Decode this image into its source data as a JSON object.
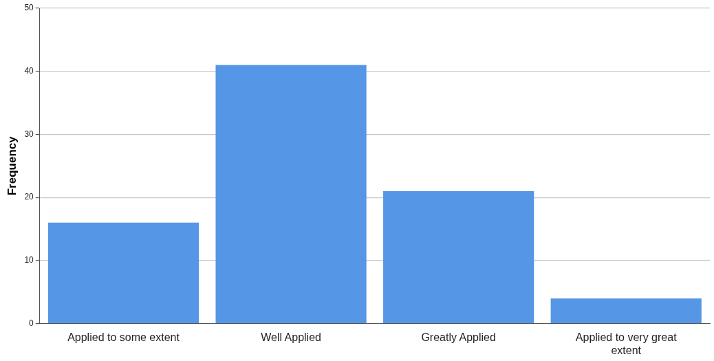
{
  "chart_data": {
    "type": "bar",
    "ylabel": "Frequency",
    "categories": [
      "Applied to some extent",
      "Well Applied",
      "Greatly Applied",
      "Applied to very great extent"
    ],
    "values": [
      16,
      41,
      21,
      4
    ],
    "color": "#5596e6",
    "ylim": [
      0,
      50
    ],
    "yticks": [
      0,
      10,
      20,
      30,
      40,
      50
    ],
    "grid": "y",
    "legend": false
  }
}
